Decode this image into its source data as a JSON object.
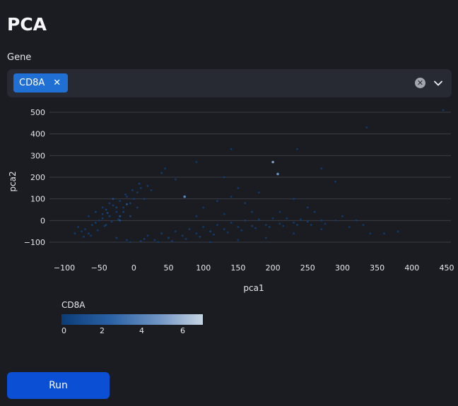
{
  "page": {
    "title": "PCA"
  },
  "gene_select": {
    "label": "Gene",
    "selected": [
      "CD8A"
    ],
    "remove_symbol": "✕",
    "clear_symbol": "✕"
  },
  "chart_data": {
    "type": "scatter",
    "xlabel": "pca1",
    "ylabel": "pca2",
    "xlim": [
      -110,
      455
    ],
    "ylim": [
      -140,
      530
    ],
    "x_ticks": [
      -100,
      -50,
      0,
      50,
      100,
      150,
      200,
      250,
      300,
      350,
      400,
      450
    ],
    "y_ticks": [
      -100,
      0,
      100,
      200,
      300,
      400,
      500
    ],
    "x_tick_labels": [
      "−100",
      "−50",
      "0",
      "50",
      "100",
      "150",
      "200",
      "250",
      "300",
      "350",
      "400",
      "450"
    ],
    "y_tick_labels": [
      "−100",
      "0",
      "100",
      "200",
      "300",
      "400",
      "500"
    ],
    "grid": "horizontal",
    "color_variable": "CD8A",
    "colorbar": {
      "title": "CD8A",
      "ticks": [
        "0",
        "2",
        "4",
        "6"
      ],
      "range": [
        0,
        7
      ]
    },
    "colors": {
      "low": "#0b3c77",
      "mid": "#2b62a6",
      "high": "#c7d4e2"
    },
    "points": [
      [
        -45,
        30,
        0.3
      ],
      [
        -40,
        50,
        0.5
      ],
      [
        -30,
        70,
        0.2
      ],
      [
        -20,
        90,
        0.4
      ],
      [
        -10,
        110,
        0.3
      ],
      [
        -35,
        20,
        0.6
      ],
      [
        -25,
        40,
        0.2
      ],
      [
        -15,
        60,
        0.3
      ],
      [
        -5,
        80,
        0.5
      ],
      [
        5,
        130,
        0.2
      ],
      [
        -50,
        0,
        0.1
      ],
      [
        -60,
        -20,
        0.3
      ],
      [
        -70,
        -40,
        0.2
      ],
      [
        -55,
        -10,
        0.4
      ],
      [
        -45,
        10,
        0.2
      ],
      [
        -30,
        100,
        1.5
      ],
      [
        -20,
        20,
        2.0
      ],
      [
        -40,
        -20,
        0.5
      ],
      [
        0,
        100,
        0.3
      ],
      [
        10,
        150,
        0.2
      ],
      [
        20,
        160,
        0.4
      ],
      [
        -85,
        -60,
        0.2
      ],
      [
        -80,
        -30,
        0.3
      ],
      [
        -65,
        -60,
        0.2
      ],
      [
        -75,
        -50,
        0.1
      ],
      [
        -10,
        -90,
        0.2
      ],
      [
        10,
        -95,
        0.3
      ],
      [
        30,
        -90,
        0.2
      ],
      [
        50,
        -80,
        0.4
      ],
      [
        70,
        -70,
        0.3
      ],
      [
        90,
        -60,
        0.2
      ],
      [
        110,
        -50,
        0.5
      ],
      [
        130,
        -40,
        0.3
      ],
      [
        150,
        -30,
        0.2
      ],
      [
        170,
        -25,
        0.4
      ],
      [
        190,
        -20,
        0.2
      ],
      [
        210,
        -15,
        0.3
      ],
      [
        230,
        -10,
        0.2
      ],
      [
        250,
        -5,
        0.4
      ],
      [
        270,
        0,
        0.2
      ],
      [
        290,
        0,
        0.1
      ],
      [
        20,
        -70,
        0.3
      ],
      [
        40,
        -60,
        0.2
      ],
      [
        60,
        -50,
        0.1
      ],
      [
        80,
        -40,
        0.3
      ],
      [
        100,
        -30,
        0.2
      ],
      [
        120,
        -20,
        0.3
      ],
      [
        140,
        -10,
        0.2
      ],
      [
        160,
        0,
        0.4
      ],
      [
        180,
        5,
        0.2
      ],
      [
        200,
        10,
        0.1
      ],
      [
        220,
        10,
        0.3
      ],
      [
        240,
        5,
        0.2
      ],
      [
        330,
        -20,
        0.2
      ],
      [
        340,
        -60,
        0.1
      ],
      [
        360,
        -60,
        0.2
      ],
      [
        380,
        -50,
        0.1
      ],
      [
        200,
        270,
        5.0
      ],
      [
        207,
        215,
        4.5
      ],
      [
        73,
        110,
        4.0
      ],
      [
        335,
        430,
        0.3
      ],
      [
        445,
        510,
        0.2
      ],
      [
        140,
        330,
        0.2
      ],
      [
        235,
        330,
        0.1
      ],
      [
        90,
        270,
        0.2
      ],
      [
        270,
        240,
        0.3
      ],
      [
        290,
        180,
        0.2
      ],
      [
        150,
        150,
        0.3
      ],
      [
        130,
        200,
        0.2
      ],
      [
        180,
        130,
        0.2
      ],
      [
        230,
        100,
        0.3
      ],
      [
        250,
        60,
        0.2
      ],
      [
        60,
        190,
        0.3
      ],
      [
        40,
        220,
        0.2
      ],
      [
        45,
        240,
        0.1
      ],
      [
        -25,
        -80,
        0.3
      ],
      [
        -5,
        -100,
        0.2
      ],
      [
        15,
        -85,
        0.4
      ],
      [
        35,
        -100,
        0.2
      ],
      [
        55,
        -95,
        0.3
      ],
      [
        75,
        -85,
        0.2
      ],
      [
        95,
        -75,
        0.4
      ],
      [
        115,
        -65,
        0.2
      ],
      [
        135,
        -55,
        0.1
      ],
      [
        155,
        -45,
        0.3
      ],
      [
        175,
        -35,
        0.2
      ],
      [
        195,
        -30,
        0.4
      ],
      [
        215,
        -25,
        0.2
      ],
      [
        235,
        -20,
        0.3
      ],
      [
        255,
        -20,
        0.2
      ],
      [
        275,
        -15,
        0.1
      ],
      [
        -15,
        40,
        0.6
      ],
      [
        -25,
        60,
        0.8
      ],
      [
        -35,
        80,
        0.4
      ],
      [
        -45,
        60,
        0.3
      ],
      [
        -55,
        40,
        0.5
      ],
      [
        -65,
        20,
        0.2
      ],
      [
        -5,
        20,
        0.7
      ],
      [
        5,
        60,
        0.4
      ],
      [
        15,
        100,
        0.3
      ],
      [
        25,
        140,
        0.2
      ],
      [
        -12,
        120,
        0.4
      ],
      [
        -2,
        140,
        0.3
      ],
      [
        8,
        170,
        0.5
      ],
      [
        -22,
        5,
        0.3
      ],
      [
        -32,
        -5,
        0.2
      ],
      [
        -42,
        -25,
        0.4
      ],
      [
        -52,
        -45,
        0.3
      ],
      [
        -62,
        -70,
        0.2
      ],
      [
        -72,
        -75,
        0.3
      ],
      [
        -20,
        0,
        1.8
      ],
      [
        -10,
        75,
        2.5
      ],
      [
        -38,
        35,
        1.2
      ],
      [
        110,
        -100,
        0.2
      ],
      [
        150,
        -90,
        0.1
      ],
      [
        190,
        -80,
        0.2
      ],
      [
        230,
        -60,
        0.1
      ],
      [
        270,
        -40,
        0.2
      ],
      [
        310,
        -30,
        0.1
      ],
      [
        320,
        0,
        0.2
      ],
      [
        300,
        20,
        0.1
      ],
      [
        260,
        40,
        0.2
      ],
      [
        210,
        40,
        0.1
      ],
      [
        170,
        40,
        0.2
      ],
      [
        130,
        30,
        0.1
      ],
      [
        90,
        20,
        0.2
      ],
      [
        100,
        60,
        0.1
      ],
      [
        120,
        90,
        0.2
      ],
      [
        140,
        110,
        0.1
      ],
      [
        160,
        80,
        0.2
      ]
    ]
  },
  "run_button": {
    "label": "Run"
  }
}
